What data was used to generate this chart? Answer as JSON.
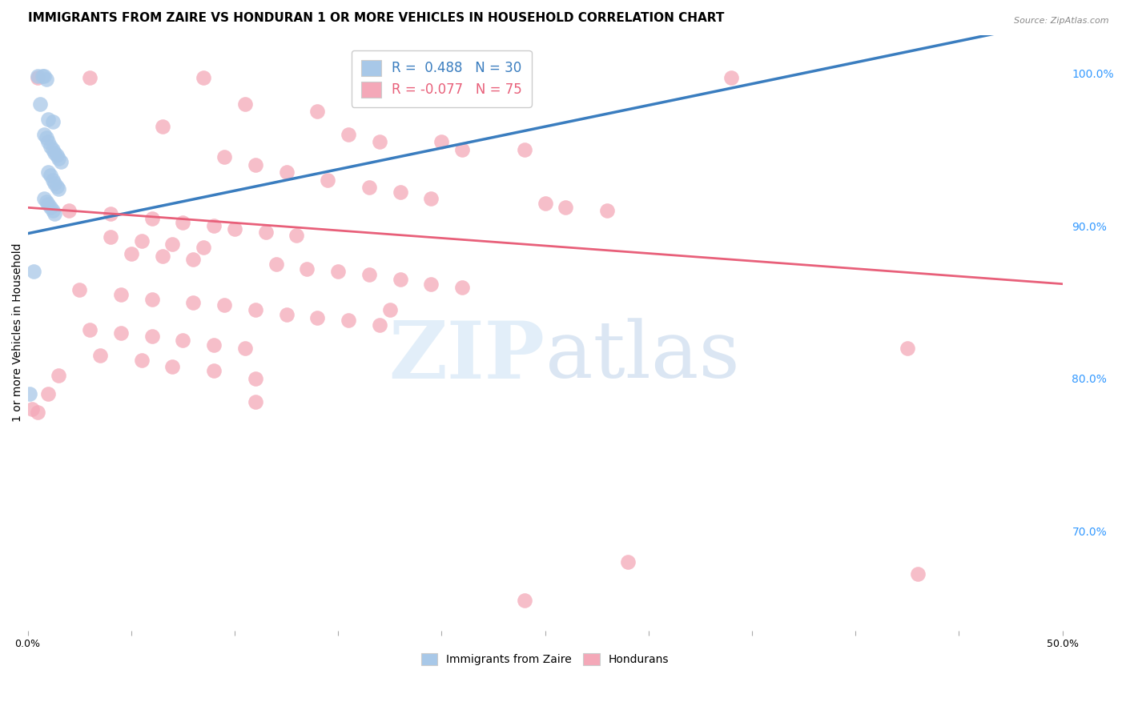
{
  "title": "IMMIGRANTS FROM ZAIRE VS HONDURAN 1 OR MORE VEHICLES IN HOUSEHOLD CORRELATION CHART",
  "source": "Source: ZipAtlas.com",
  "ylabel": "1 or more Vehicles in Household",
  "xlim": [
    0.0,
    0.5
  ],
  "ylim": [
    0.635,
    1.025
  ],
  "xticks": [
    0.0,
    0.05,
    0.1,
    0.15,
    0.2,
    0.25,
    0.3,
    0.35,
    0.4,
    0.45,
    0.5
  ],
  "xticklabels": [
    "0.0%",
    "",
    "",
    "",
    "",
    "",
    "",
    "",
    "",
    "",
    "50.0%"
  ],
  "yticks_right": [
    0.7,
    0.8,
    0.9,
    1.0
  ],
  "blue_color": "#a8c8e8",
  "pink_color": "#f4a8b8",
  "blue_line_color": "#3a7dbf",
  "pink_line_color": "#e8607a",
  "zaire_R": 0.488,
  "zaire_N": 30,
  "honduran_R": -0.077,
  "honduran_N": 75,
  "zaire_dots": [
    [
      0.005,
      0.998
    ],
    [
      0.007,
      0.998
    ],
    [
      0.008,
      0.998
    ],
    [
      0.009,
      0.996
    ],
    [
      0.006,
      0.98
    ],
    [
      0.01,
      0.97
    ],
    [
      0.012,
      0.968
    ],
    [
      0.008,
      0.96
    ],
    [
      0.009,
      0.958
    ],
    [
      0.01,
      0.955
    ],
    [
      0.011,
      0.952
    ],
    [
      0.012,
      0.95
    ],
    [
      0.013,
      0.948
    ],
    [
      0.014,
      0.946
    ],
    [
      0.015,
      0.944
    ],
    [
      0.016,
      0.942
    ],
    [
      0.01,
      0.935
    ],
    [
      0.011,
      0.933
    ],
    [
      0.012,
      0.93
    ],
    [
      0.013,
      0.928
    ],
    [
      0.014,
      0.926
    ],
    [
      0.015,
      0.924
    ],
    [
      0.008,
      0.918
    ],
    [
      0.009,
      0.916
    ],
    [
      0.01,
      0.914
    ],
    [
      0.011,
      0.912
    ],
    [
      0.012,
      0.91
    ],
    [
      0.013,
      0.908
    ],
    [
      0.003,
      0.87
    ],
    [
      0.001,
      0.79
    ]
  ],
  "honduran_dots": [
    [
      0.005,
      0.997
    ],
    [
      0.03,
      0.997
    ],
    [
      0.085,
      0.997
    ],
    [
      0.34,
      0.997
    ],
    [
      0.105,
      0.98
    ],
    [
      0.14,
      0.975
    ],
    [
      0.065,
      0.965
    ],
    [
      0.155,
      0.96
    ],
    [
      0.17,
      0.955
    ],
    [
      0.2,
      0.955
    ],
    [
      0.21,
      0.95
    ],
    [
      0.24,
      0.95
    ],
    [
      0.095,
      0.945
    ],
    [
      0.11,
      0.94
    ],
    [
      0.125,
      0.935
    ],
    [
      0.145,
      0.93
    ],
    [
      0.165,
      0.925
    ],
    [
      0.18,
      0.922
    ],
    [
      0.195,
      0.918
    ],
    [
      0.25,
      0.915
    ],
    [
      0.26,
      0.912
    ],
    [
      0.28,
      0.91
    ],
    [
      0.02,
      0.91
    ],
    [
      0.04,
      0.908
    ],
    [
      0.06,
      0.905
    ],
    [
      0.075,
      0.902
    ],
    [
      0.09,
      0.9
    ],
    [
      0.1,
      0.898
    ],
    [
      0.115,
      0.896
    ],
    [
      0.13,
      0.894
    ],
    [
      0.04,
      0.893
    ],
    [
      0.055,
      0.89
    ],
    [
      0.07,
      0.888
    ],
    [
      0.085,
      0.886
    ],
    [
      0.05,
      0.882
    ],
    [
      0.065,
      0.88
    ],
    [
      0.08,
      0.878
    ],
    [
      0.12,
      0.875
    ],
    [
      0.135,
      0.872
    ],
    [
      0.15,
      0.87
    ],
    [
      0.165,
      0.868
    ],
    [
      0.18,
      0.865
    ],
    [
      0.195,
      0.862
    ],
    [
      0.21,
      0.86
    ],
    [
      0.025,
      0.858
    ],
    [
      0.045,
      0.855
    ],
    [
      0.06,
      0.852
    ],
    [
      0.08,
      0.85
    ],
    [
      0.095,
      0.848
    ],
    [
      0.11,
      0.845
    ],
    [
      0.125,
      0.842
    ],
    [
      0.14,
      0.84
    ],
    [
      0.155,
      0.838
    ],
    [
      0.17,
      0.835
    ],
    [
      0.03,
      0.832
    ],
    [
      0.045,
      0.83
    ],
    [
      0.06,
      0.828
    ],
    [
      0.075,
      0.825
    ],
    [
      0.09,
      0.822
    ],
    [
      0.105,
      0.82
    ],
    [
      0.035,
      0.815
    ],
    [
      0.055,
      0.812
    ],
    [
      0.07,
      0.808
    ],
    [
      0.09,
      0.805
    ],
    [
      0.015,
      0.802
    ],
    [
      0.11,
      0.8
    ],
    [
      0.01,
      0.79
    ],
    [
      0.11,
      0.785
    ],
    [
      0.005,
      0.778
    ],
    [
      0.175,
      0.845
    ],
    [
      0.425,
      0.82
    ],
    [
      0.29,
      0.68
    ],
    [
      0.24,
      0.655
    ],
    [
      0.43,
      0.672
    ],
    [
      0.002,
      0.78
    ]
  ],
  "zaire_line": [
    0.0,
    0.5,
    0.895,
    1.035
  ],
  "honduran_line": [
    0.0,
    0.5,
    0.912,
    0.862
  ],
  "watermark_zip": "ZIP",
  "watermark_atlas": "atlas",
  "background_color": "#ffffff",
  "grid_color": "#dddddd",
  "title_fontsize": 11,
  "axis_label_fontsize": 10,
  "tick_fontsize": 9
}
